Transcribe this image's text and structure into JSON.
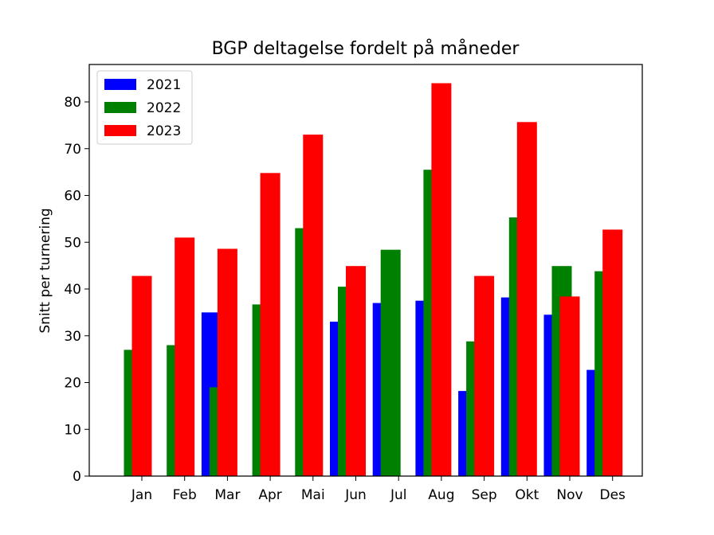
{
  "chart_data": {
    "type": "bar",
    "title": "BGP deltagelse fordelt på måneder",
    "xlabel": "",
    "ylabel": "Snitt per turnering",
    "categories": [
      "Jan",
      "Feb",
      "Mar",
      "Apr",
      "Mai",
      "Jun",
      "Jul",
      "Aug",
      "Sep",
      "Okt",
      "Nov",
      "Des"
    ],
    "ylim": [
      0,
      88
    ],
    "yticks": [
      0,
      10,
      20,
      30,
      40,
      50,
      60,
      70,
      80
    ],
    "grid": false,
    "legend_position": "top-left",
    "series": [
      {
        "name": "2021",
        "color": "#0000ff",
        "values": [
          null,
          null,
          35.0,
          null,
          null,
          33.0,
          37.0,
          37.5,
          18.2,
          38.2,
          34.5,
          22.7
        ]
      },
      {
        "name": "2022",
        "color": "#008000",
        "values": [
          27.0,
          28.0,
          19.0,
          36.7,
          53.0,
          40.5,
          48.4,
          65.5,
          28.8,
          55.3,
          44.9,
          43.8
        ]
      },
      {
        "name": "2023",
        "color": "#ff0000",
        "values": [
          42.8,
          51.0,
          48.6,
          64.8,
          73.0,
          44.9,
          null,
          84.0,
          42.8,
          75.7,
          38.4,
          52.7
        ]
      }
    ]
  }
}
